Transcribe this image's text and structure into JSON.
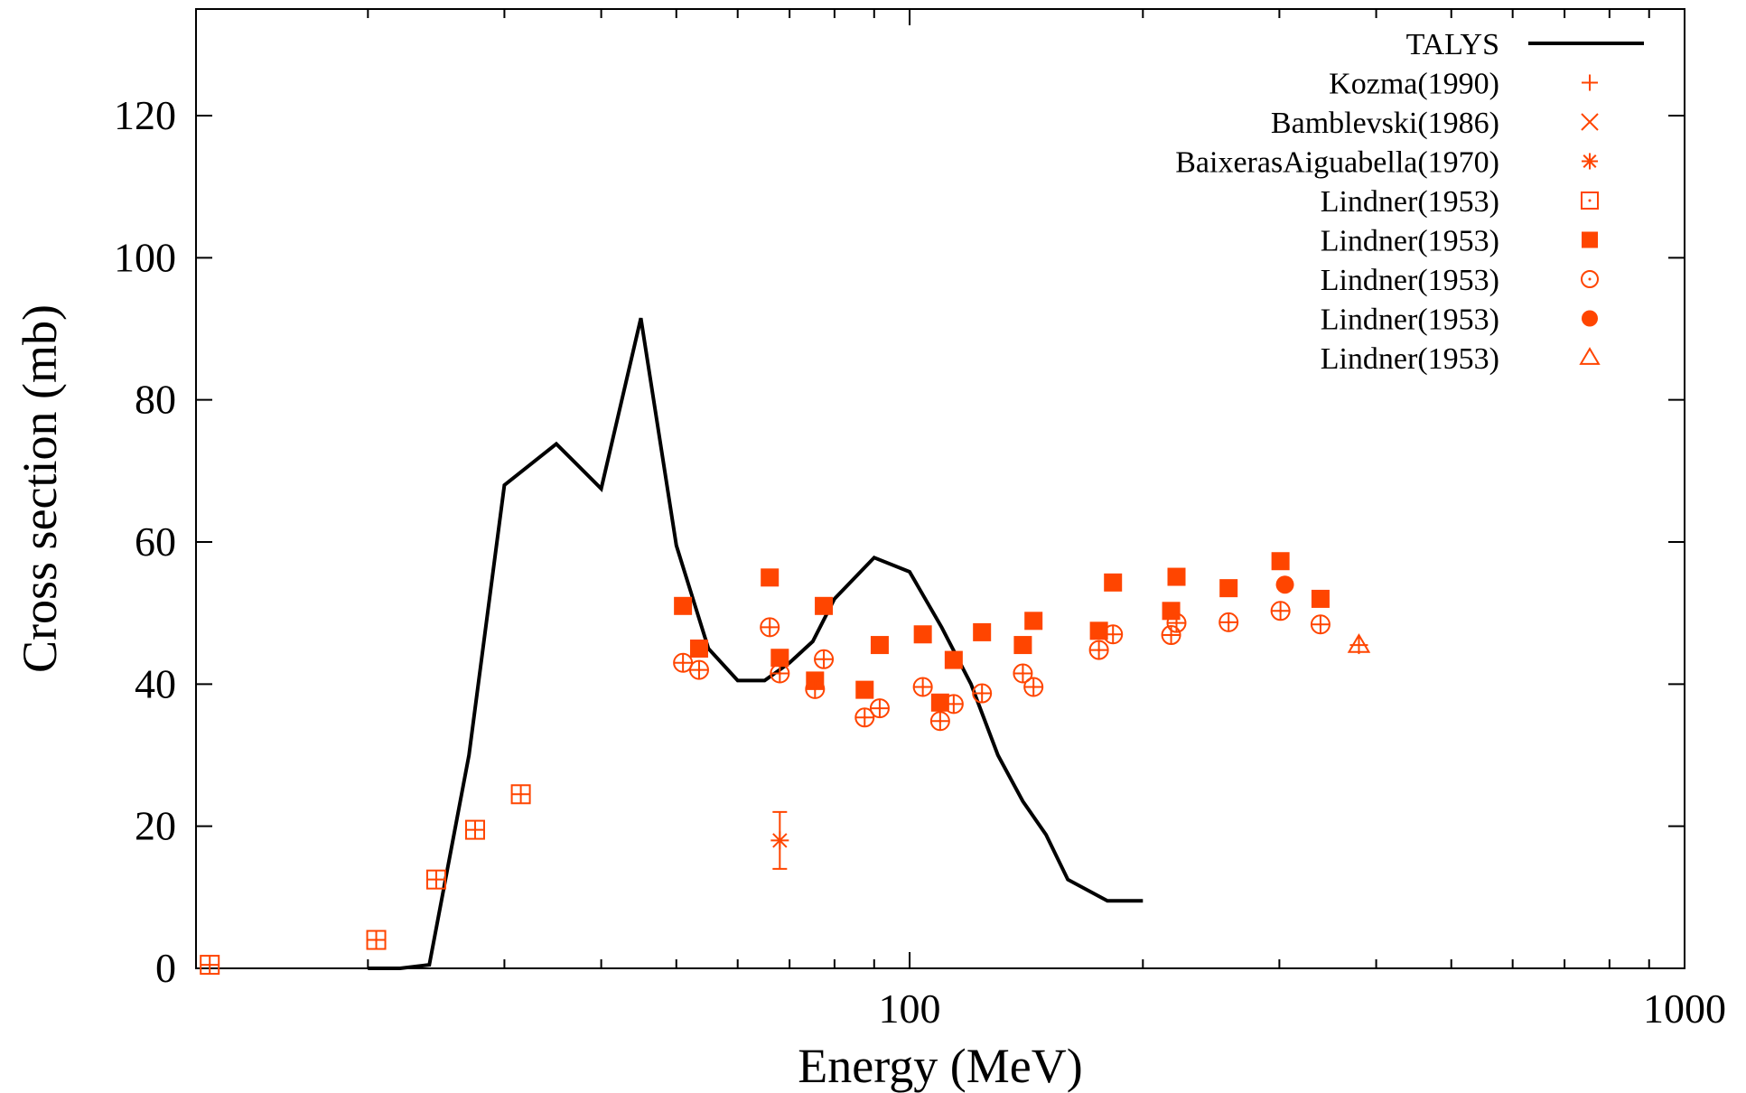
{
  "chart_data": {
    "type": "scatter",
    "xlabel": "Energy (MeV)",
    "ylabel": "Cross section (mb)",
    "xscale": "log",
    "xlim": [
      12,
      1000
    ],
    "ylim": [
      0,
      135
    ],
    "xticks": [
      {
        "value": 100,
        "label": "100"
      },
      {
        "value": 1000,
        "label": "1000"
      }
    ],
    "yticks": [
      {
        "value": 0,
        "label": "0"
      },
      {
        "value": 20,
        "label": "20"
      },
      {
        "value": 40,
        "label": "40"
      },
      {
        "value": 60,
        "label": "60"
      },
      {
        "value": 80,
        "label": "80"
      },
      {
        "value": 100,
        "label": "100"
      },
      {
        "value": 120,
        "label": "120"
      }
    ],
    "legend_position": "top-right",
    "colors": {
      "talys": "#000000",
      "exp": "#ff4500"
    },
    "series": [
      {
        "name": "TALYS",
        "type": "line",
        "x": [
          20,
          22,
          24,
          27,
          30,
          35,
          40,
          45,
          50,
          55,
          60,
          65,
          70,
          75,
          80,
          90,
          100,
          110,
          120,
          130,
          140,
          150,
          160,
          180,
          200
        ],
        "y": [
          0,
          0,
          0.5,
          30,
          68,
          73.8,
          67.5,
          91.5,
          59.5,
          45,
          40.5,
          40.5,
          43,
          46,
          52,
          57.8,
          55.8,
          48,
          40,
          30,
          23.5,
          18.8,
          12.5,
          9.5,
          9.5
        ]
      },
      {
        "name": "Kozma(1990)",
        "marker": "plus",
        "x": [],
        "y": []
      },
      {
        "name": "Bamblevski(1986)",
        "marker": "cross",
        "x": [],
        "y": []
      },
      {
        "name": "BaixerasAiguabella(1970)",
        "marker": "asterisk",
        "x": [
          68
        ],
        "y": [
          18
        ],
        "yerr": [
          4
        ]
      },
      {
        "name": "Lindner(1953)",
        "marker": "open-square",
        "x": [
          12.5,
          20.5,
          24.5,
          27.5,
          31.5
        ],
        "y": [
          0.5,
          4,
          12.5,
          19.5,
          24.5
        ]
      },
      {
        "name": "Lindner(1953)",
        "marker": "filled-square",
        "x": [
          51,
          53.5,
          66,
          68,
          75.5,
          77.5,
          87.5,
          91.5,
          104,
          109.5,
          114,
          124,
          140,
          144.5,
          175.5,
          183,
          217.5,
          221,
          258,
          301,
          339
        ],
        "y": [
          51,
          45,
          55,
          43.7,
          40.5,
          51,
          39.2,
          45.5,
          47,
          37.4,
          43.4,
          47.3,
          45.5,
          48.9,
          47.5,
          54.3,
          50.3,
          55.1,
          53.5,
          57.3,
          52
        ]
      },
      {
        "name": "Lindner(1953)",
        "marker": "open-circle",
        "x": [
          51,
          53.5,
          66,
          68,
          75.5,
          77.5,
          87.5,
          91.5,
          104,
          109.5,
          114,
          124,
          140,
          144.5,
          175.5,
          183,
          217.5,
          221,
          258,
          301,
          339
        ],
        "y": [
          43,
          42,
          48,
          41.5,
          39.3,
          43.5,
          35.3,
          36.6,
          39.6,
          34.8,
          37.2,
          38.7,
          41.5,
          39.6,
          44.8,
          47,
          46.9,
          48.6,
          48.7,
          50.3,
          48.4
        ]
      },
      {
        "name": "Lindner(1953)",
        "marker": "filled-circle",
        "x": [
          305
        ],
        "y": [
          54
        ]
      },
      {
        "name": "Lindner(1953)",
        "marker": "open-triangle",
        "x": [
          380
        ],
        "y": [
          45.5
        ]
      }
    ]
  }
}
